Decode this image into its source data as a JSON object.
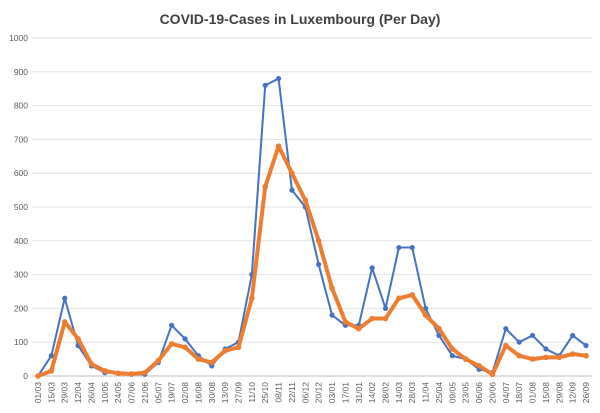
{
  "chart_data": {
    "type": "line",
    "title": "COVID-19-Cases in Luxembourg (Per Day)",
    "xlabel": "",
    "ylabel": "",
    "ylim": [
      0,
      1000
    ],
    "yticks": [
      0,
      100,
      200,
      300,
      400,
      500,
      600,
      700,
      800,
      900,
      1000
    ],
    "grid": true,
    "legend": "none",
    "colors": {
      "daily": "#4472C4",
      "average": "#ED7D31"
    },
    "x_tick_labels": [
      "01/03",
      "15/03",
      "29/03",
      "12/04",
      "26/04",
      "10/05",
      "24/05",
      "07/06",
      "21/06",
      "05/07",
      "19/07",
      "02/08",
      "16/08",
      "30/08",
      "13/09",
      "27/09",
      "11/10",
      "25/10",
      "08/11",
      "22/11",
      "06/12",
      "20/12",
      "03/01",
      "17/01",
      "31/01",
      "14/02",
      "28/02",
      "14/03",
      "28/03",
      "11/04",
      "25/04",
      "09/05",
      "23/05",
      "06/06",
      "20/06",
      "04/07",
      "18/07",
      "01/08",
      "15/08",
      "29/08",
      "12/09",
      "26/09"
    ],
    "x": [
      "01/03",
      "15/03",
      "29/03",
      "12/04",
      "26/04",
      "10/05",
      "24/05",
      "07/06",
      "21/06",
      "05/07",
      "19/07",
      "02/08",
      "16/08",
      "30/08",
      "13/09",
      "27/09",
      "11/10",
      "25/10",
      "08/11",
      "22/11",
      "06/12",
      "20/12",
      "03/01",
      "17/01",
      "31/01",
      "14/02",
      "28/02",
      "14/03",
      "28/03",
      "11/04",
      "25/04",
      "09/05",
      "23/05",
      "06/06",
      "20/06",
      "04/07",
      "18/07",
      "01/08",
      "15/08",
      "29/08",
      "12/09",
      "26/09"
    ],
    "series": [
      {
        "name": "",
        "style": "line-markers",
        "values": [
          0,
          60,
          230,
          90,
          30,
          10,
          8,
          5,
          5,
          40,
          150,
          110,
          60,
          30,
          80,
          100,
          300,
          860,
          880,
          550,
          500,
          330,
          180,
          150,
          150,
          320,
          200,
          380,
          380,
          200,
          120,
          60,
          50,
          20,
          10,
          140,
          100,
          120,
          80,
          60,
          120,
          90
        ]
      },
      {
        "name": "",
        "style": "line-smooth",
        "values": [
          0,
          15,
          160,
          110,
          35,
          15,
          8,
          6,
          10,
          45,
          95,
          85,
          50,
          40,
          75,
          85,
          230,
          560,
          680,
          600,
          520,
          400,
          260,
          160,
          140,
          170,
          170,
          230,
          240,
          180,
          140,
          80,
          50,
          30,
          5,
          90,
          60,
          50,
          55,
          55,
          65,
          60
        ]
      }
    ]
  }
}
